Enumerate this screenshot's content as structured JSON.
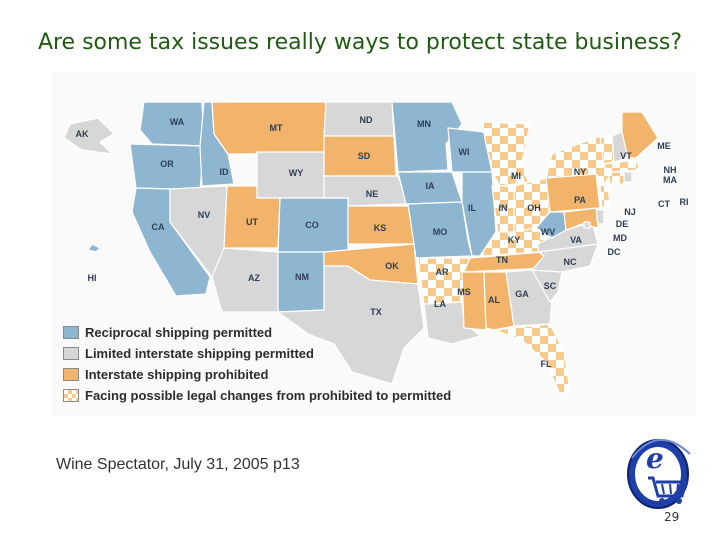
{
  "title": "Are some tax issues really ways to protect state business?",
  "colors": {
    "reciprocal": "#8fb6d0",
    "limited": "#d7d7d7",
    "prohibited": "#f2b36a",
    "facing": "#f7c98a",
    "border": "#ffffff",
    "title": "#1f5c12"
  },
  "legend": [
    {
      "key": "reciprocal",
      "label": "Reciprocal shipping permitted"
    },
    {
      "key": "limited",
      "label": "Limited interstate shipping permitted"
    },
    {
      "key": "prohibited",
      "label": "Interstate shipping prohibited"
    },
    {
      "key": "facing",
      "label": "Facing possible legal changes from prohibited to permitted"
    }
  ],
  "states": [
    {
      "abbr": "WA",
      "status": "reciprocal"
    },
    {
      "abbr": "OR",
      "status": "reciprocal"
    },
    {
      "abbr": "CA",
      "status": "reciprocal"
    },
    {
      "abbr": "ID",
      "status": "reciprocal"
    },
    {
      "abbr": "NV",
      "status": "limited"
    },
    {
      "abbr": "MT",
      "status": "prohibited"
    },
    {
      "abbr": "WY",
      "status": "limited"
    },
    {
      "abbr": "UT",
      "status": "prohibited"
    },
    {
      "abbr": "CO",
      "status": "reciprocal"
    },
    {
      "abbr": "AZ",
      "status": "limited"
    },
    {
      "abbr": "NM",
      "status": "reciprocal"
    },
    {
      "abbr": "ND",
      "status": "limited"
    },
    {
      "abbr": "SD",
      "status": "prohibited"
    },
    {
      "abbr": "NE",
      "status": "limited"
    },
    {
      "abbr": "KS",
      "status": "prohibited"
    },
    {
      "abbr": "OK",
      "status": "prohibited"
    },
    {
      "abbr": "TX",
      "status": "limited"
    },
    {
      "abbr": "MN",
      "status": "reciprocal"
    },
    {
      "abbr": "IA",
      "status": "reciprocal"
    },
    {
      "abbr": "MO",
      "status": "reciprocal"
    },
    {
      "abbr": "AR",
      "status": "facing"
    },
    {
      "abbr": "LA",
      "status": "limited"
    },
    {
      "abbr": "WI",
      "status": "reciprocal"
    },
    {
      "abbr": "IL",
      "status": "reciprocal"
    },
    {
      "abbr": "MI",
      "status": "facing"
    },
    {
      "abbr": "IN",
      "status": "facing"
    },
    {
      "abbr": "OH",
      "status": "facing"
    },
    {
      "abbr": "KY",
      "status": "facing"
    },
    {
      "abbr": "TN",
      "status": "prohibited"
    },
    {
      "abbr": "MS",
      "status": "prohibited"
    },
    {
      "abbr": "AL",
      "status": "prohibited"
    },
    {
      "abbr": "GA",
      "status": "limited"
    },
    {
      "abbr": "FL",
      "status": "facing"
    },
    {
      "abbr": "SC",
      "status": "limited"
    },
    {
      "abbr": "NC",
      "status": "limited"
    },
    {
      "abbr": "VA",
      "status": "limited"
    },
    {
      "abbr": "WV",
      "status": "reciprocal"
    },
    {
      "abbr": "PA",
      "status": "prohibited"
    },
    {
      "abbr": "NY",
      "status": "facing"
    },
    {
      "abbr": "VT",
      "status": "facing"
    },
    {
      "abbr": "NH",
      "status": "limited"
    },
    {
      "abbr": "ME",
      "status": "prohibited"
    },
    {
      "abbr": "MA",
      "status": "facing"
    },
    {
      "abbr": "CT",
      "status": "facing"
    },
    {
      "abbr": "RI",
      "status": "limited"
    },
    {
      "abbr": "NJ",
      "status": "facing"
    },
    {
      "abbr": "DE",
      "status": "limited"
    },
    {
      "abbr": "MD",
      "status": "prohibited"
    },
    {
      "abbr": "DC",
      "status": "limited"
    },
    {
      "abbr": "AK",
      "status": "limited"
    },
    {
      "abbr": "HI",
      "status": "reciprocal"
    }
  ],
  "source": "Wine Spectator, July 31, 2005 p13",
  "page_number": "29",
  "logo_icon": "ecommerce-cart-icon"
}
